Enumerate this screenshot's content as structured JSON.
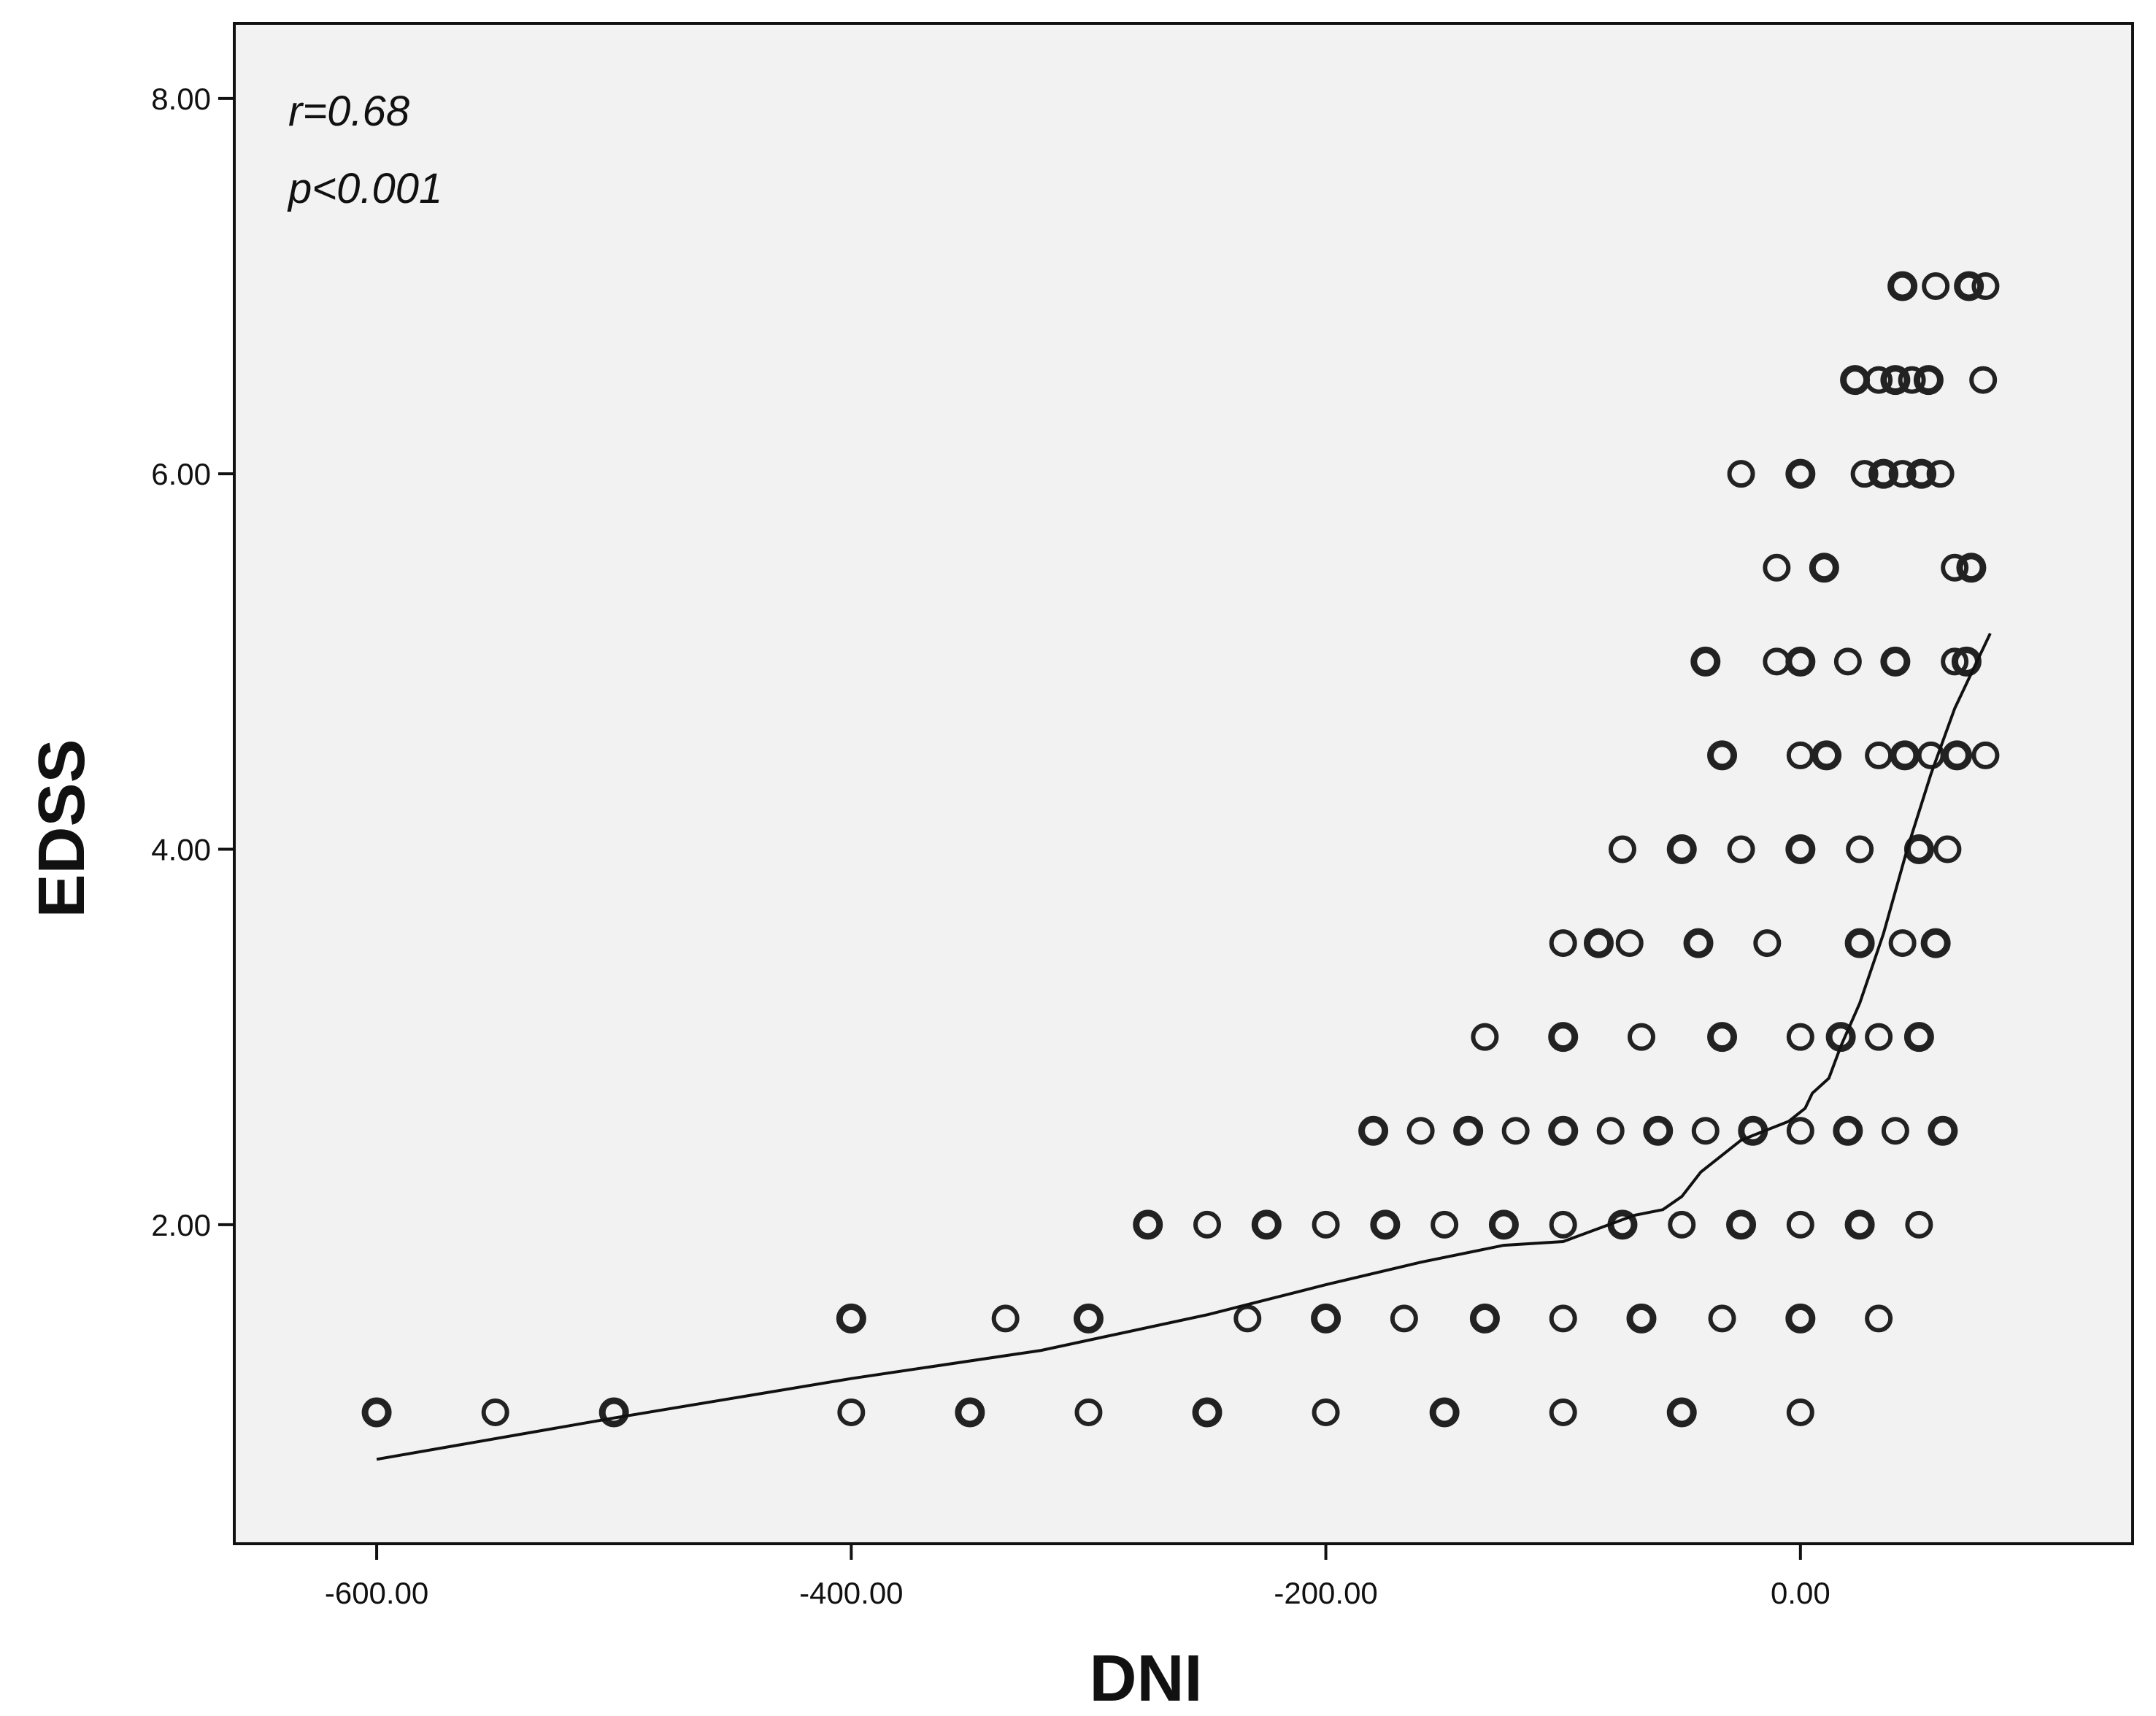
{
  "chart_data": {
    "type": "scatter",
    "title": "",
    "xlabel": "DNI",
    "ylabel": "EDSS",
    "xlim": [
      -660,
      140
    ],
    "ylim": [
      0.3,
      8.4
    ],
    "x_ticks": [
      -600,
      -400,
      -200,
      0
    ],
    "x_tick_labels": [
      "-600.00",
      "-400.00",
      "-200.00",
      "0.00"
    ],
    "y_ticks": [
      2,
      4,
      6,
      8
    ],
    "y_tick_labels": [
      "2.00",
      "4.00",
      "6.00",
      "8.00"
    ],
    "grid": false,
    "annotations": [
      "r=0.68",
      "p<0.001"
    ],
    "colors": {
      "background": "#f2f2f2",
      "points": "#222222",
      "line": "#111111"
    },
    "series": [
      {
        "type": "scatter",
        "points": [
          [
            -600,
            1.0
          ],
          [
            -550,
            1.0
          ],
          [
            -500,
            1.0
          ],
          [
            -400,
            1.0
          ],
          [
            -350,
            1.0
          ],
          [
            -300,
            1.0
          ],
          [
            -250,
            1.0
          ],
          [
            -200,
            1.0
          ],
          [
            -150,
            1.0
          ],
          [
            -100,
            1.0
          ],
          [
            -50,
            1.0
          ],
          [
            0,
            1.0
          ],
          [
            -400,
            1.5
          ],
          [
            -335,
            1.5
          ],
          [
            -300,
            1.5
          ],
          [
            -233,
            1.5
          ],
          [
            -200,
            1.5
          ],
          [
            -167,
            1.5
          ],
          [
            -133,
            1.5
          ],
          [
            -100,
            1.5
          ],
          [
            -67,
            1.5
          ],
          [
            -33,
            1.5
          ],
          [
            0,
            1.5
          ],
          [
            33,
            1.5
          ],
          [
            -275,
            2.0
          ],
          [
            -250,
            2.0
          ],
          [
            -225,
            2.0
          ],
          [
            -200,
            2.0
          ],
          [
            -175,
            2.0
          ],
          [
            -150,
            2.0
          ],
          [
            -125,
            2.0
          ],
          [
            -100,
            2.0
          ],
          [
            -75,
            2.0
          ],
          [
            -50,
            2.0
          ],
          [
            -25,
            2.0
          ],
          [
            0,
            2.0
          ],
          [
            25,
            2.0
          ],
          [
            50,
            2.0
          ],
          [
            -180,
            2.5
          ],
          [
            -160,
            2.5
          ],
          [
            -140,
            2.5
          ],
          [
            -120,
            2.5
          ],
          [
            -100,
            2.5
          ],
          [
            -80,
            2.5
          ],
          [
            -60,
            2.5
          ],
          [
            -40,
            2.5
          ],
          [
            -20,
            2.5
          ],
          [
            0,
            2.5
          ],
          [
            20,
            2.5
          ],
          [
            40,
            2.5
          ],
          [
            60,
            2.5
          ],
          [
            -133,
            3.0
          ],
          [
            -100,
            3.0
          ],
          [
            -67,
            3.0
          ],
          [
            -33,
            3.0
          ],
          [
            0,
            3.0
          ],
          [
            17,
            3.0
          ],
          [
            33,
            3.0
          ],
          [
            50,
            3.0
          ],
          [
            -100,
            3.5
          ],
          [
            -85,
            3.5
          ],
          [
            -72,
            3.5
          ],
          [
            -43,
            3.5
          ],
          [
            -14,
            3.5
          ],
          [
            25,
            3.5
          ],
          [
            43,
            3.5
          ],
          [
            57,
            3.5
          ],
          [
            -75,
            4.0
          ],
          [
            -50,
            4.0
          ],
          [
            -25,
            4.0
          ],
          [
            0,
            4.0
          ],
          [
            25,
            4.0
          ],
          [
            50,
            4.0
          ],
          [
            62,
            4.0
          ],
          [
            -33,
            4.5
          ],
          [
            0,
            4.5
          ],
          [
            11,
            4.5
          ],
          [
            33,
            4.5
          ],
          [
            44,
            4.5
          ],
          [
            55,
            4.5
          ],
          [
            66,
            4.5
          ],
          [
            78,
            4.5
          ],
          [
            -40,
            5.0
          ],
          [
            -10,
            5.0
          ],
          [
            0,
            5.0
          ],
          [
            20,
            5.0
          ],
          [
            40,
            5.0
          ],
          [
            65,
            5.0
          ],
          [
            70,
            5.0
          ],
          [
            -10,
            5.5
          ],
          [
            10,
            5.5
          ],
          [
            65,
            5.5
          ],
          [
            72,
            5.5
          ],
          [
            -25,
            6.0
          ],
          [
            0,
            6.0
          ],
          [
            27,
            6.0
          ],
          [
            35,
            6.0
          ],
          [
            43,
            6.0
          ],
          [
            51,
            6.0
          ],
          [
            59,
            6.0
          ],
          [
            23,
            6.5
          ],
          [
            33,
            6.5
          ],
          [
            40,
            6.5
          ],
          [
            47,
            6.5
          ],
          [
            54,
            6.5
          ],
          [
            77,
            6.5
          ],
          [
            43,
            7.0
          ],
          [
            57,
            7.0
          ],
          [
            71,
            7.0
          ],
          [
            78,
            7.0
          ]
        ]
      },
      {
        "type": "line",
        "points": [
          [
            -600,
            0.75
          ],
          [
            -500,
            0.97
          ],
          [
            -400,
            1.18
          ],
          [
            -320,
            1.33
          ],
          [
            -250,
            1.52
          ],
          [
            -200,
            1.68
          ],
          [
            -160,
            1.8
          ],
          [
            -125,
            1.89
          ],
          [
            -100,
            1.91
          ],
          [
            -70,
            2.05
          ],
          [
            -58,
            2.08
          ],
          [
            -50,
            2.15
          ],
          [
            -42,
            2.28
          ],
          [
            -33,
            2.37
          ],
          [
            -25,
            2.45
          ],
          [
            -15,
            2.5
          ],
          [
            -5,
            2.55
          ],
          [
            2,
            2.62
          ],
          [
            5,
            2.7
          ],
          [
            12,
            2.78
          ],
          [
            17,
            2.95
          ],
          [
            25,
            3.18
          ],
          [
            35,
            3.55
          ],
          [
            45,
            4.0
          ],
          [
            55,
            4.4
          ],
          [
            65,
            4.75
          ],
          [
            80,
            5.15
          ]
        ]
      }
    ]
  }
}
